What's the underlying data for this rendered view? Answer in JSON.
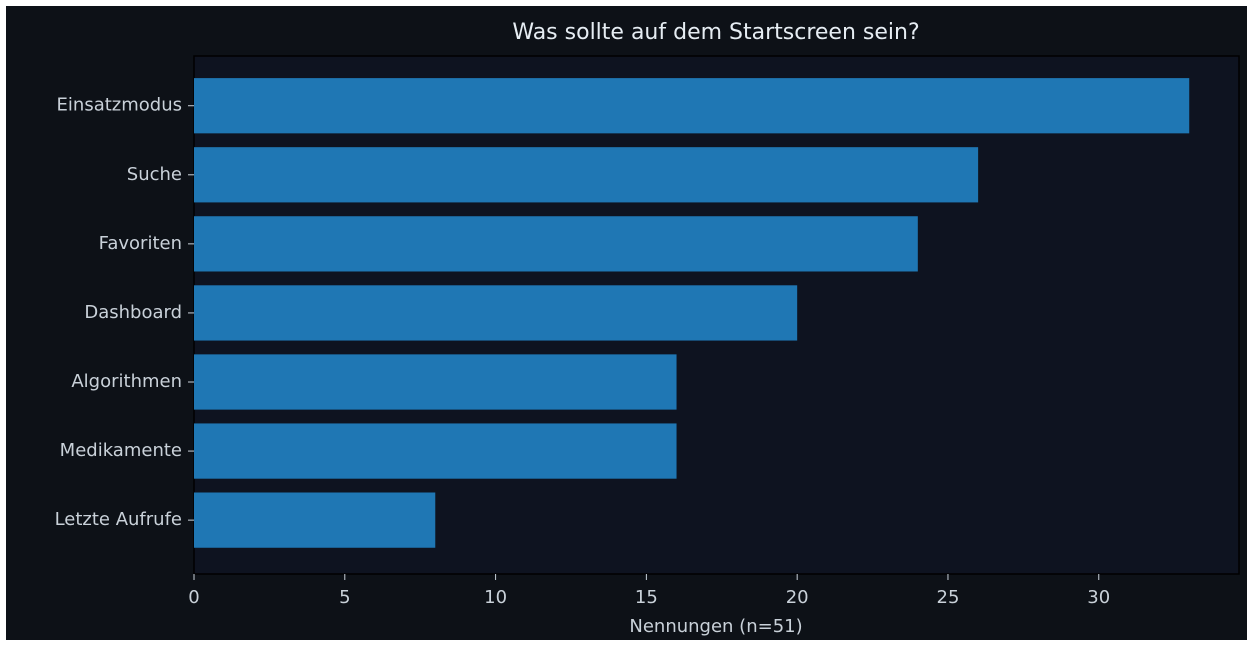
{
  "chart_data": {
    "type": "barh",
    "title": "Was sollte auf dem Startscreen sein?",
    "xlabel": "Nennungen (n=51)",
    "categories": [
      "Einsatzmodus",
      "Suche",
      "Favoriten",
      "Dashboard",
      "Algorithmen",
      "Medikamente",
      "Letzte Aufrufe"
    ],
    "values": [
      33,
      26,
      24,
      20,
      16,
      16,
      8
    ],
    "color": "#1f77b4",
    "xlim": [
      0,
      34.65
    ],
    "xticks": [
      0,
      5,
      10,
      15,
      20,
      25,
      30
    ],
    "grid": false
  }
}
